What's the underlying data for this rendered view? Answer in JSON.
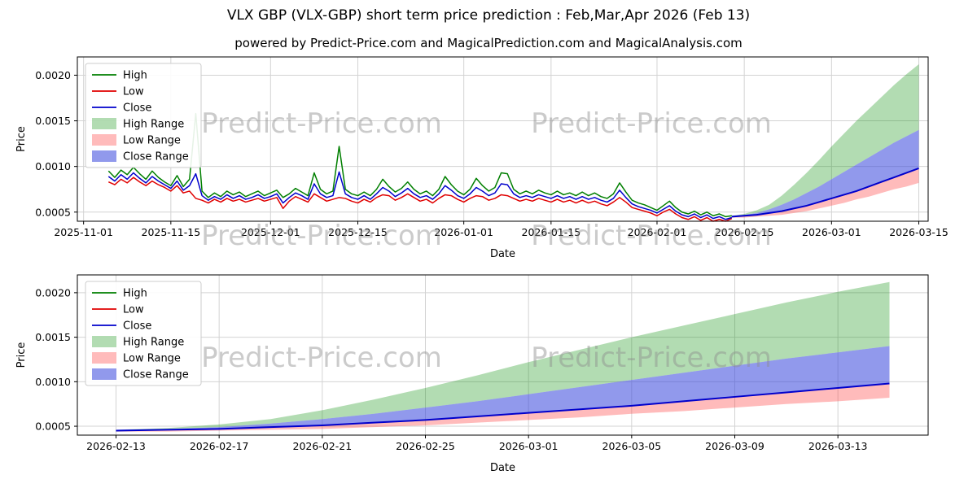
{
  "header": {
    "title": "VLX GBP (VLX-GBP) short term price prediction : Feb,Mar,Apr 2026 (Feb 13)",
    "subtitle": "powered by Predict-Price.com and MagicalPrediction.com and MagicalAnalysis.com"
  },
  "watermark": "Predict-Price.com",
  "colors": {
    "grid": "#d3d3d3",
    "spine": "#000000",
    "high": "#007f00",
    "low": "#e00000",
    "close": "#0000cc",
    "high_range": "rgba(0,140,0,0.30)",
    "low_range": "rgba(255,60,60,0.35)",
    "close_range": "rgba(55,70,220,0.55)"
  },
  "chart_data": [
    {
      "type": "line",
      "title": "",
      "xlabel": "Date",
      "ylabel": "Price",
      "ylim": [
        0.0004,
        0.0022
      ],
      "xlim": [
        -1,
        135.5
      ],
      "yticks": [
        0.0005,
        0.001,
        0.0015,
        0.002
      ],
      "xticks": [
        {
          "day": 0,
          "label": "2025-11-01"
        },
        {
          "day": 14,
          "label": "2025-11-15"
        },
        {
          "day": 30,
          "label": "2025-12-01"
        },
        {
          "day": 44,
          "label": "2025-12-15"
        },
        {
          "day": 61,
          "label": "2026-01-01"
        },
        {
          "day": 75,
          "label": "2026-01-15"
        },
        {
          "day": 92,
          "label": "2026-02-01"
        },
        {
          "day": 106,
          "label": "2026-02-15"
        },
        {
          "day": 120,
          "label": "2026-03-01"
        },
        {
          "day": 134,
          "label": "2026-03-15"
        }
      ],
      "legend": [
        {
          "label": "High",
          "type": "line",
          "color": "high"
        },
        {
          "label": "Low",
          "type": "line",
          "color": "low"
        },
        {
          "label": "Close",
          "type": "line",
          "color": "close"
        },
        {
          "label": "High Range",
          "type": "patch",
          "color": "high_range"
        },
        {
          "label": "Low Range",
          "type": "patch",
          "color": "low_range"
        },
        {
          "label": "Close Range",
          "type": "patch",
          "color": "close_range"
        }
      ],
      "history": {
        "start_day": 4,
        "high": [
          0.00095,
          0.00088,
          0.00096,
          0.00091,
          0.00099,
          0.00092,
          0.00086,
          0.00095,
          0.00088,
          0.00083,
          0.00079,
          0.0009,
          0.00078,
          0.00086,
          0.00158,
          0.00073,
          0.00066,
          0.00071,
          0.00067,
          0.00073,
          0.00069,
          0.00072,
          0.00067,
          0.0007,
          0.00073,
          0.00068,
          0.00071,
          0.00074,
          0.00066,
          0.0007,
          0.00076,
          0.00072,
          0.00068,
          0.00093,
          0.00075,
          0.0007,
          0.00073,
          0.00122,
          0.00075,
          0.0007,
          0.00068,
          0.00072,
          0.00068,
          0.00075,
          0.00086,
          0.00078,
          0.00072,
          0.00076,
          0.00083,
          0.00075,
          0.0007,
          0.00073,
          0.00068,
          0.00075,
          0.00089,
          0.0008,
          0.00073,
          0.00069,
          0.00075,
          0.00087,
          0.00079,
          0.00073,
          0.00077,
          0.00093,
          0.00092,
          0.00075,
          0.0007,
          0.00073,
          0.0007,
          0.00074,
          0.00071,
          0.00069,
          0.00073,
          0.00069,
          0.00071,
          0.00068,
          0.00072,
          0.00068,
          0.00071,
          0.00067,
          0.00065,
          0.0007,
          0.00082,
          0.00072,
          0.00063,
          0.0006,
          0.00058,
          0.00055,
          0.00052,
          0.00057,
          0.00062,
          0.00055,
          0.0005,
          0.00048,
          0.00051,
          0.00047,
          0.0005,
          0.00046,
          0.00048,
          0.00045,
          0.00046
        ],
        "low": [
          0.00083,
          0.0008,
          0.00086,
          0.00082,
          0.00088,
          0.00083,
          0.00079,
          0.00084,
          0.0008,
          0.00077,
          0.00073,
          0.00079,
          0.00071,
          0.00073,
          0.00065,
          0.00063,
          0.0006,
          0.00064,
          0.00061,
          0.00065,
          0.00062,
          0.00064,
          0.00061,
          0.00063,
          0.00065,
          0.00062,
          0.00064,
          0.00066,
          0.00054,
          0.00062,
          0.00067,
          0.00064,
          0.00061,
          0.0007,
          0.00066,
          0.00062,
          0.00064,
          0.00066,
          0.00065,
          0.00062,
          0.0006,
          0.00064,
          0.00061,
          0.00066,
          0.00069,
          0.00068,
          0.00063,
          0.00066,
          0.0007,
          0.00066,
          0.00062,
          0.00064,
          0.0006,
          0.00065,
          0.00069,
          0.00068,
          0.00064,
          0.00061,
          0.00065,
          0.00068,
          0.00067,
          0.00063,
          0.00065,
          0.00069,
          0.00068,
          0.00065,
          0.00062,
          0.00064,
          0.00062,
          0.00065,
          0.00063,
          0.00061,
          0.00064,
          0.00061,
          0.00063,
          0.0006,
          0.00063,
          0.0006,
          0.00062,
          0.00059,
          0.00057,
          0.00061,
          0.00066,
          0.00061,
          0.00055,
          0.00053,
          0.00051,
          0.00049,
          0.00046,
          0.0005,
          0.00053,
          0.00048,
          0.00044,
          0.00042,
          0.00045,
          0.00041,
          0.00044,
          0.0004,
          0.00042,
          0.0004,
          0.00043
        ],
        "close": [
          0.00089,
          0.00084,
          0.00091,
          0.00086,
          0.00093,
          0.00087,
          0.00082,
          0.00089,
          0.00084,
          0.0008,
          0.00076,
          0.00084,
          0.00074,
          0.00079,
          0.00092,
          0.00068,
          0.00063,
          0.00067,
          0.00064,
          0.00069,
          0.00065,
          0.00068,
          0.00064,
          0.00066,
          0.00069,
          0.00065,
          0.00067,
          0.0007,
          0.0006,
          0.00066,
          0.00071,
          0.00068,
          0.00064,
          0.00081,
          0.0007,
          0.00066,
          0.00068,
          0.00094,
          0.0007,
          0.00066,
          0.00064,
          0.00068,
          0.00064,
          0.0007,
          0.00077,
          0.00073,
          0.00067,
          0.00071,
          0.00076,
          0.0007,
          0.00066,
          0.00068,
          0.00064,
          0.0007,
          0.00079,
          0.00074,
          0.00068,
          0.00065,
          0.0007,
          0.00077,
          0.00073,
          0.00068,
          0.00071,
          0.00081,
          0.0008,
          0.0007,
          0.00066,
          0.00068,
          0.00066,
          0.00069,
          0.00067,
          0.00065,
          0.00068,
          0.00065,
          0.00067,
          0.00064,
          0.00067,
          0.00064,
          0.00066,
          0.00063,
          0.00061,
          0.00065,
          0.00074,
          0.00066,
          0.00059,
          0.00056,
          0.00054,
          0.00052,
          0.00049,
          0.00053,
          0.00057,
          0.00051,
          0.00047,
          0.00045,
          0.00048,
          0.00044,
          0.00047,
          0.00043,
          0.00045,
          0.00042,
          0.00044
        ]
      },
      "forecast": {
        "days": [
          104,
          106,
          108,
          110,
          112,
          114,
          116,
          118,
          120,
          122,
          124,
          126,
          128,
          130,
          132,
          134
        ],
        "close": [
          0.00045,
          0.00046,
          0.00047,
          0.00049,
          0.00051,
          0.00054,
          0.00057,
          0.00061,
          0.00065,
          0.00069,
          0.00073,
          0.00078,
          0.00083,
          0.00088,
          0.00093,
          0.00098
        ],
        "high_top": [
          0.00046,
          0.00048,
          0.00052,
          0.00058,
          0.00068,
          0.0008,
          0.00093,
          0.00107,
          0.00122,
          0.00136,
          0.0015,
          0.00163,
          0.00176,
          0.00189,
          0.00201,
          0.00212
        ],
        "close_top": [
          0.00046,
          0.00047,
          0.00049,
          0.00053,
          0.00058,
          0.00064,
          0.00071,
          0.00078,
          0.00086,
          0.00094,
          0.00102,
          0.0011,
          0.00118,
          0.00126,
          0.00133,
          0.0014
        ],
        "low_bottom": [
          0.00044,
          0.00044,
          0.00045,
          0.00046,
          0.00047,
          0.00049,
          0.00051,
          0.00054,
          0.00057,
          0.0006,
          0.00064,
          0.00067,
          0.00071,
          0.00075,
          0.00078,
          0.00082
        ]
      }
    },
    {
      "type": "line",
      "title": "",
      "xlabel": "Date",
      "ylabel": "Price",
      "ylim": [
        0.0004,
        0.0022
      ],
      "xlim": [
        102.5,
        135.5
      ],
      "yticks": [
        0.0005,
        0.001,
        0.0015,
        0.002
      ],
      "xticks": [
        {
          "day": 104,
          "label": "2026-02-13"
        },
        {
          "day": 108,
          "label": "2026-02-17"
        },
        {
          "day": 112,
          "label": "2026-02-21"
        },
        {
          "day": 116,
          "label": "2026-02-25"
        },
        {
          "day": 120,
          "label": "2026-03-01"
        },
        {
          "day": 124,
          "label": "2026-03-05"
        },
        {
          "day": 128,
          "label": "2026-03-09"
        },
        {
          "day": 132,
          "label": "2026-03-13"
        }
      ],
      "legend": [
        {
          "label": "High",
          "type": "line",
          "color": "high"
        },
        {
          "label": "Low",
          "type": "line",
          "color": "low"
        },
        {
          "label": "Close",
          "type": "line",
          "color": "close"
        },
        {
          "label": "High Range",
          "type": "patch",
          "color": "high_range"
        },
        {
          "label": "Low Range",
          "type": "patch",
          "color": "low_range"
        },
        {
          "label": "Close Range",
          "type": "patch",
          "color": "close_range"
        }
      ],
      "forecast": {
        "days": [
          104,
          106,
          108,
          110,
          112,
          114,
          116,
          118,
          120,
          122,
          124,
          126,
          128,
          130,
          132,
          134
        ],
        "close": [
          0.00045,
          0.00046,
          0.00047,
          0.00049,
          0.00051,
          0.00054,
          0.00057,
          0.00061,
          0.00065,
          0.00069,
          0.00073,
          0.00078,
          0.00083,
          0.00088,
          0.00093,
          0.00098
        ],
        "high_top": [
          0.00046,
          0.00048,
          0.00052,
          0.00058,
          0.00068,
          0.0008,
          0.00093,
          0.00107,
          0.00122,
          0.00136,
          0.0015,
          0.00163,
          0.00176,
          0.00189,
          0.00201,
          0.00212
        ],
        "close_top": [
          0.00046,
          0.00047,
          0.00049,
          0.00053,
          0.00058,
          0.00064,
          0.00071,
          0.00078,
          0.00086,
          0.00094,
          0.00102,
          0.0011,
          0.00118,
          0.00126,
          0.00133,
          0.0014
        ],
        "low_bottom": [
          0.00044,
          0.00044,
          0.00045,
          0.00046,
          0.00047,
          0.00049,
          0.00051,
          0.00054,
          0.00057,
          0.0006,
          0.00064,
          0.00067,
          0.00071,
          0.00075,
          0.00078,
          0.00082
        ]
      }
    }
  ]
}
